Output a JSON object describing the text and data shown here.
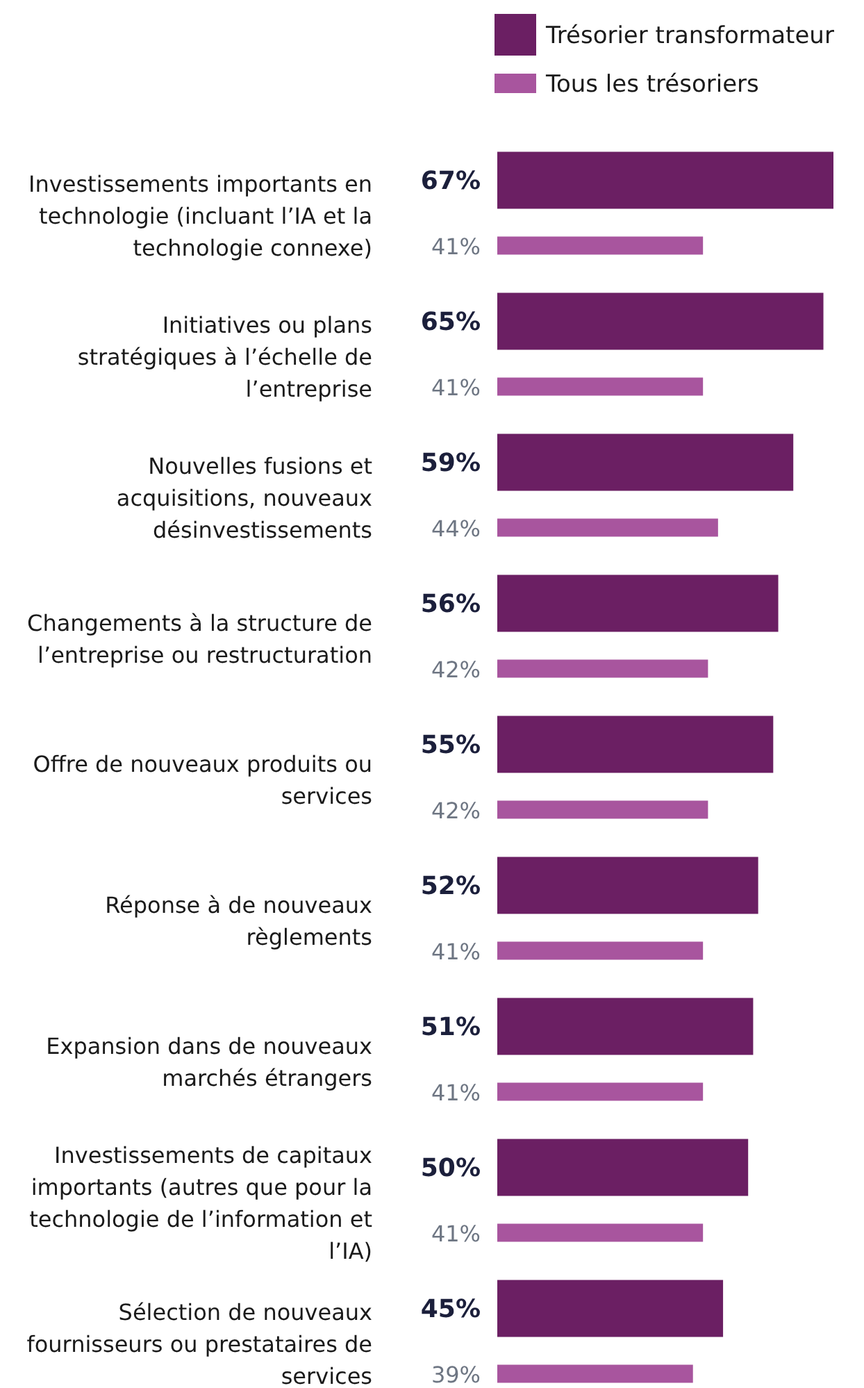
{
  "chart_data": {
    "type": "bar",
    "orientation": "horizontal",
    "legend": "top right",
    "categories": [
      "Investissements importants en technologie (incluant l’IA et la technologie connexe)",
      "Initiatives ou plans stratégiques à l’échelle de l’entreprise",
      "Nouvelles fusions et acquisitions, nouveaux désinvestissements",
      "Changements à la structure de l’entreprise ou restructuration",
      "Offre de nouveaux produits ou services",
      "Réponse à de nouveaux règlements",
      "Expansion dans de nouveaux marchés étrangers",
      "Investissements de capitaux importants (autres que pour la technologie de l’information et l’IA)",
      "Sélection de nouveaux fournisseurs ou prestataires de services"
    ],
    "series": [
      {
        "name": "Trésorier transformateur",
        "color": "#6b1f63",
        "values": [
          67,
          65,
          59,
          56,
          55,
          52,
          51,
          50,
          45
        ],
        "value_labels": [
          "67%",
          "65%",
          "59%",
          "56%",
          "55%",
          "52%",
          "51%",
          "50%",
          "45%"
        ]
      },
      {
        "name": "Tous les trésoriers",
        "color": "#a8559e",
        "values": [
          41,
          41,
          44,
          42,
          42,
          41,
          41,
          41,
          39
        ],
        "value_labels": [
          "41%",
          "41%",
          "44%",
          "42%",
          "42%",
          "41%",
          "41%",
          "41%",
          "39%"
        ]
      }
    ]
  }
}
